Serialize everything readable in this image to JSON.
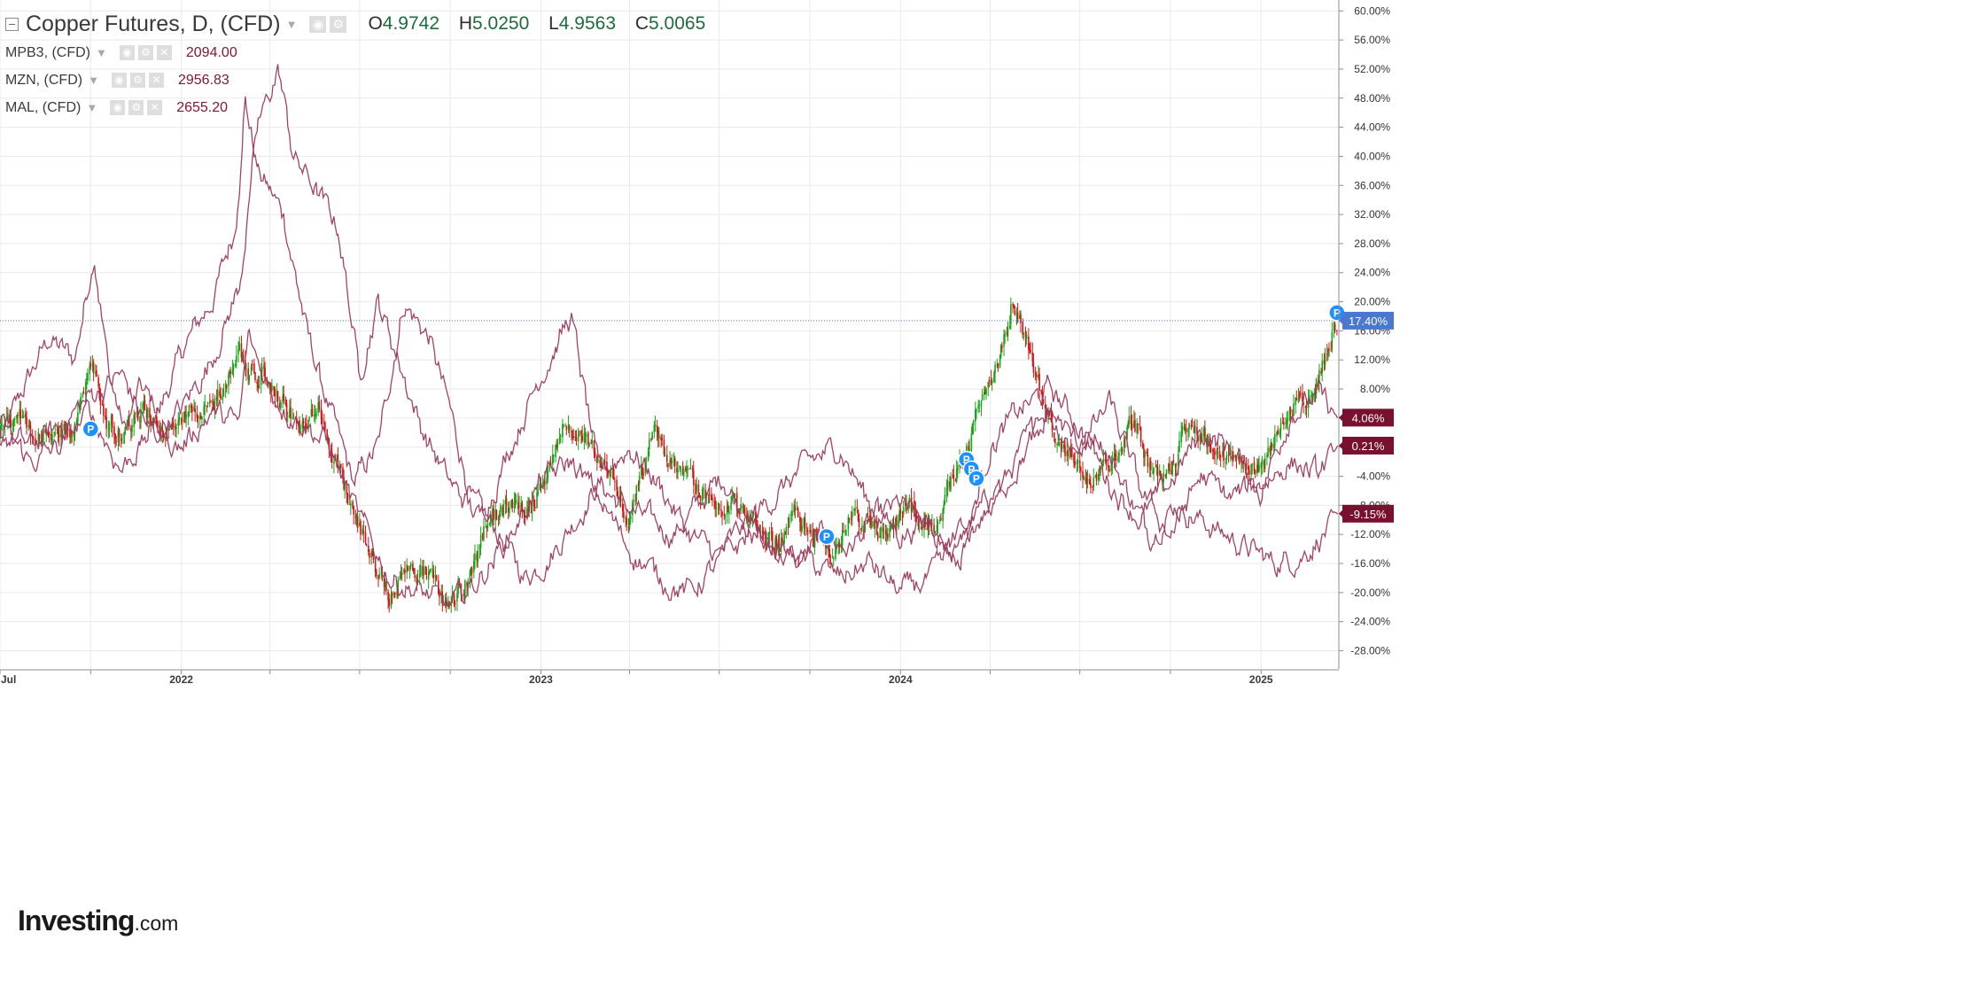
{
  "legend": {
    "main": {
      "title": "Copper Futures, D, (CFD)",
      "o_label": "O",
      "o_value": "4.9742",
      "h_label": "H",
      "h_value": "5.0250",
      "l_label": "L",
      "l_value": "4.9563",
      "c_label": "C",
      "c_value": "5.0065"
    },
    "series": [
      {
        "name": "MPB3, (CFD)",
        "value": "2094.00"
      },
      {
        "name": "MZN, (CFD)",
        "value": "2956.83"
      },
      {
        "name": "MAL, (CFD)",
        "value": "2655.20"
      }
    ]
  },
  "logo": {
    "text": "Investing",
    "suffix": ".com"
  },
  "colors": {
    "candle_up": "#19a319",
    "candle_down": "#d01818",
    "compare_line": "#9b3a5c",
    "grid": "#eaeaea",
    "axis_text": "#333333",
    "current_line": "#4a78d0",
    "marker": "#1e90ff"
  },
  "chart_data": {
    "type": "line",
    "title": "Copper Futures, D, (CFD)",
    "xlabel": "",
    "ylabel": "",
    "y_unit": "percent change",
    "ylim": [
      -30.5,
      61.5
    ],
    "xlim": [
      "2021-07-01",
      "2025-03-20"
    ],
    "grid": true,
    "y_ticks": [
      60,
      56,
      52,
      48,
      44,
      40,
      36,
      32,
      28,
      24,
      20,
      16,
      12,
      8,
      4,
      0,
      -4,
      -8,
      -12,
      -16,
      -20,
      -24,
      -28
    ],
    "y_tick_labels": [
      "60.00%",
      "56.00%",
      "52.00%",
      "48.00%",
      "44.00%",
      "40.00%",
      "36.00%",
      "32.00%",
      "28.00%",
      "24.00%",
      "20.00%",
      "16.00%",
      "12.00%",
      "8.00%",
      "4.00%",
      "0.00%",
      "-4.00%",
      "-8.00%",
      "-12.00%",
      "-16.00%",
      "-20.00%",
      "-24.00%",
      "-28.00%"
    ],
    "x_tick_labels": [
      {
        "date": "2021-07-01",
        "label": "Jul"
      },
      {
        "date": "2022-01-01",
        "label": "2022"
      },
      {
        "date": "2023-01-01",
        "label": "2023"
      },
      {
        "date": "2024-01-01",
        "label": "2024"
      },
      {
        "date": "2025-01-01",
        "label": "2025"
      }
    ],
    "x_grid_dates": [
      "2021-07-01",
      "2021-10-01",
      "2022-01-01",
      "2022-04-01",
      "2022-07-01",
      "2022-10-01",
      "2023-01-01",
      "2023-04-01",
      "2023-07-01",
      "2023-10-01",
      "2024-01-01",
      "2024-04-01",
      "2024-07-01",
      "2024-10-01",
      "2025-01-01"
    ],
    "current_value": 17.4,
    "price_series": {
      "name": "Copper Futures, D, (CFD)",
      "render": "candles",
      "x": [
        "2021-07-01",
        "2021-07-20",
        "2021-08-10",
        "2021-09-01",
        "2021-09-15",
        "2021-10-01",
        "2021-10-18",
        "2021-11-05",
        "2021-11-25",
        "2021-12-15",
        "2022-01-05",
        "2022-01-25",
        "2022-02-15",
        "2022-03-01",
        "2022-03-07",
        "2022-03-25",
        "2022-04-15",
        "2022-05-01",
        "2022-05-20",
        "2022-06-10",
        "2022-06-25",
        "2022-07-05",
        "2022-07-15",
        "2022-08-01",
        "2022-08-20",
        "2022-09-10",
        "2022-09-30",
        "2022-10-20",
        "2022-11-10",
        "2022-12-01",
        "2022-12-20",
        "2023-01-10",
        "2023-01-25",
        "2023-02-15",
        "2023-03-10",
        "2023-04-01",
        "2023-04-25",
        "2023-05-15",
        "2023-06-05",
        "2023-06-25",
        "2023-07-15",
        "2023-08-05",
        "2023-08-25",
        "2023-09-15",
        "2023-10-05",
        "2023-10-25",
        "2023-11-15",
        "2023-12-05",
        "2023-12-20",
        "2024-01-10",
        "2024-01-25",
        "2024-02-10",
        "2024-02-25",
        "2024-03-10",
        "2024-03-25",
        "2024-04-10",
        "2024-04-25",
        "2024-05-10",
        "2024-05-20",
        "2024-06-05",
        "2024-06-25",
        "2024-07-15",
        "2024-08-05",
        "2024-08-25",
        "2024-09-15",
        "2024-10-01",
        "2024-10-20",
        "2024-11-10",
        "2024-11-30",
        "2024-12-20",
        "2025-01-05",
        "2025-01-25",
        "2025-02-10",
        "2025-02-25",
        "2025-03-10",
        "2025-03-20"
      ],
      "values": [
        2,
        4,
        1,
        3,
        2,
        11,
        4,
        2,
        5,
        3,
        4,
        5,
        8,
        14,
        10,
        10,
        6,
        2,
        5,
        -3,
        -8,
        -12,
        -16,
        -20,
        -16,
        -18,
        -22,
        -18,
        -10,
        -8,
        -9,
        -2,
        3,
        1,
        -2,
        -10,
        2,
        -3,
        -5,
        -7,
        -8,
        -10,
        -14,
        -9,
        -12,
        -14,
        -9,
        -11,
        -12,
        -8,
        -10,
        -11,
        -4,
        -1,
        8,
        12,
        21,
        14,
        9,
        2,
        -2,
        -5,
        -2,
        4,
        -4,
        -3,
        3,
        1,
        -2,
        -3,
        -2,
        4,
        6,
        8,
        14,
        17.4
      ]
    },
    "series": [
      {
        "name": "MPB3, (CFD)",
        "x": [
          "2021-07-01",
          "2021-07-25",
          "2021-08-20",
          "2021-09-15",
          "2021-10-05",
          "2021-10-20",
          "2021-11-05",
          "2021-11-20",
          "2021-12-10",
          "2022-01-05",
          "2022-02-01",
          "2022-02-25",
          "2022-03-07",
          "2022-03-20",
          "2022-04-15",
          "2022-05-10",
          "2022-06-01",
          "2022-06-25",
          "2022-07-20",
          "2022-08-15",
          "2022-09-10",
          "2022-10-01",
          "2022-10-25",
          "2022-11-20",
          "2022-12-15",
          "2023-01-10",
          "2023-02-05",
          "2023-03-01",
          "2023-03-25",
          "2023-04-20",
          "2023-05-15",
          "2023-06-10",
          "2023-07-05",
          "2023-07-30",
          "2023-08-25",
          "2023-09-20",
          "2023-10-15",
          "2023-11-10",
          "2023-12-05",
          "2024-01-01",
          "2024-01-25",
          "2024-02-20",
          "2024-03-15",
          "2024-04-10",
          "2024-05-05",
          "2024-05-30",
          "2024-06-25",
          "2024-07-20",
          "2024-08-15",
          "2024-09-10",
          "2024-10-05",
          "2024-11-01",
          "2024-11-25",
          "2024-12-20",
          "2025-01-15",
          "2025-02-10",
          "2025-03-05",
          "2025-03-20"
        ],
        "values": [
          0,
          8,
          15,
          12,
          27,
          10,
          2,
          8,
          5,
          14,
          20,
          30,
          48,
          38,
          32,
          15,
          5,
          -5,
          0,
          20,
          15,
          5,
          -8,
          -12,
          -18,
          -15,
          -10,
          -5,
          -8,
          -10,
          -12,
          -8,
          -4,
          -10,
          -14,
          -16,
          -12,
          -14,
          -10,
          -8,
          -11,
          -13,
          -10,
          -6,
          0,
          5,
          0,
          2,
          -5,
          -12,
          -8,
          -10,
          -12,
          -14,
          -16,
          -15,
          -12,
          -9.15
        ]
      },
      {
        "name": "MZN, (CFD)",
        "x": [
          "2021-07-01",
          "2021-08-01",
          "2021-09-01",
          "2021-10-01",
          "2021-11-01",
          "2021-12-01",
          "2022-01-01",
          "2022-02-01",
          "2022-03-01",
          "2022-03-20",
          "2022-04-10",
          "2022-04-25",
          "2022-05-15",
          "2022-06-10",
          "2022-07-01",
          "2022-07-20",
          "2022-08-10",
          "2022-09-01",
          "2022-10-01",
          "2022-11-01",
          "2022-12-01",
          "2023-01-01",
          "2023-02-01",
          "2023-03-01",
          "2023-04-01",
          "2023-05-01",
          "2023-06-01",
          "2023-07-01",
          "2023-08-01",
          "2023-09-01",
          "2023-10-01",
          "2023-11-01",
          "2023-12-01",
          "2024-01-01",
          "2024-02-01",
          "2024-03-01",
          "2024-04-01",
          "2024-05-01",
          "2024-06-01",
          "2024-07-01",
          "2024-08-01",
          "2024-09-01",
          "2024-10-01",
          "2024-11-01",
          "2024-12-01",
          "2025-01-01",
          "2025-02-01",
          "2025-03-01",
          "2025-03-20"
        ],
        "values": [
          2,
          0,
          3,
          7,
          10,
          2,
          5,
          12,
          22,
          44,
          52,
          40,
          36,
          30,
          10,
          20,
          12,
          3,
          -5,
          -10,
          0,
          10,
          18,
          -4,
          0,
          -5,
          -12,
          -15,
          -10,
          -6,
          -2,
          0,
          -8,
          -12,
          -10,
          -16,
          0,
          5,
          8,
          3,
          -5,
          -10,
          -5,
          2,
          0,
          -6,
          5,
          7,
          4.06
        ]
      },
      {
        "name": "MAL, (CFD)",
        "x": [
          "2021-07-01",
          "2021-08-01",
          "2021-09-01",
          "2021-10-01",
          "2021-11-01",
          "2021-12-01",
          "2022-01-01",
          "2022-02-01",
          "2022-03-01",
          "2022-03-10",
          "2022-04-01",
          "2022-04-20",
          "2022-05-10",
          "2022-06-01",
          "2022-07-01",
          "2022-08-01",
          "2022-09-01",
          "2022-10-01",
          "2022-11-01",
          "2022-12-01",
          "2023-01-01",
          "2023-02-01",
          "2023-03-01",
          "2023-04-01",
          "2023-05-01",
          "2023-06-01",
          "2023-07-01",
          "2023-08-01",
          "2023-09-01",
          "2023-10-01",
          "2023-11-01",
          "2023-12-01",
          "2024-01-01",
          "2024-02-01",
          "2024-03-01",
          "2024-04-01",
          "2024-05-01",
          "2024-06-01",
          "2024-07-01",
          "2024-08-01",
          "2024-09-01",
          "2024-10-01",
          "2024-11-01",
          "2024-12-01",
          "2025-01-01",
          "2025-02-01",
          "2025-03-01",
          "2025-03-20"
        ],
        "values": [
          3,
          -2,
          0,
          5,
          -3,
          2,
          0,
          5,
          3,
          15,
          8,
          5,
          3,
          0,
          -10,
          -18,
          -20,
          -22,
          -18,
          -12,
          -5,
          -2,
          -7,
          -14,
          -18,
          -20,
          -16,
          -12,
          -14,
          -16,
          -18,
          -16,
          -20,
          -18,
          -14,
          -8,
          -2,
          5,
          0,
          6,
          -6,
          -12,
          -4,
          -7,
          -5,
          -2,
          -4,
          0.21
        ]
      }
    ],
    "right_labels": [
      {
        "value": 17.4,
        "text": "17.40%",
        "kind": "current"
      },
      {
        "value": 4.06,
        "text": "4.06%",
        "kind": "series"
      },
      {
        "value": 0.21,
        "text": "0.21%",
        "kind": "series"
      },
      {
        "value": -9.15,
        "text": "-9.15%",
        "kind": "series"
      }
    ],
    "markers": [
      {
        "date": "2021-10-01",
        "value": 2.5,
        "label": "P"
      },
      {
        "date": "2024-03-08",
        "value": -1.7,
        "label": "P"
      },
      {
        "date": "2024-03-13",
        "value": -3,
        "label": "P"
      },
      {
        "date": "2024-03-18",
        "value": -4.3,
        "label": "P"
      },
      {
        "date": "2023-10-18",
        "value": -12.3,
        "label": "P"
      },
      {
        "date": "2025-03-19",
        "value": 18.5,
        "label": "P"
      }
    ]
  }
}
